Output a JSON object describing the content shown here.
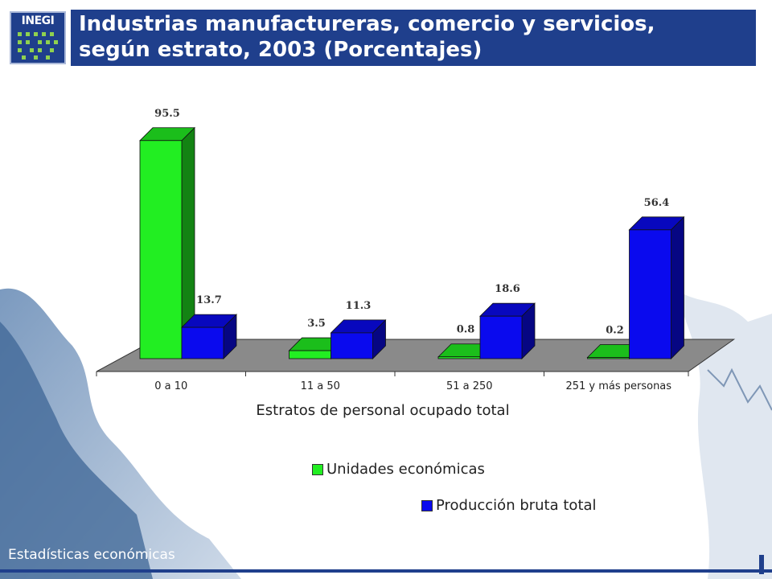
{
  "header": {
    "logo_text": "INEGI",
    "title_line1": "Industrias manufactureras, comercio y servicios,",
    "title_line2": "según estrato, 2003  (Porcentajes)"
  },
  "footer": {
    "label": "Estadísticas económicas"
  },
  "colors": {
    "title_bar": "#1f3f8c",
    "green_series": "#22ee22",
    "blue_series": "#0a0aee",
    "floor": "#8a8a8a"
  },
  "chart_data": {
    "type": "bar",
    "categories": [
      "0 a 10",
      "11 a 50",
      "51 a 250",
      "251 y más personas"
    ],
    "series": [
      {
        "name": "Unidades económicas",
        "values": [
          95.5,
          3.5,
          0.8,
          0.2
        ],
        "color": "#22ee22"
      },
      {
        "name": "Producción bruta total",
        "values": [
          13.7,
          11.3,
          18.6,
          56.4
        ],
        "color": "#0a0aee"
      }
    ],
    "data_labels": [
      [
        "95.5",
        "3.5",
        "0.8",
        "0.2"
      ],
      [
        "13.7",
        "11.3",
        "18.6",
        "56.4"
      ]
    ],
    "xlabel": "Estratos de personal ocupado total",
    "ylabel": "",
    "ylim": [
      0,
      100
    ],
    "grid": false,
    "style": "3d clustered column",
    "legend_position": "bottom"
  }
}
